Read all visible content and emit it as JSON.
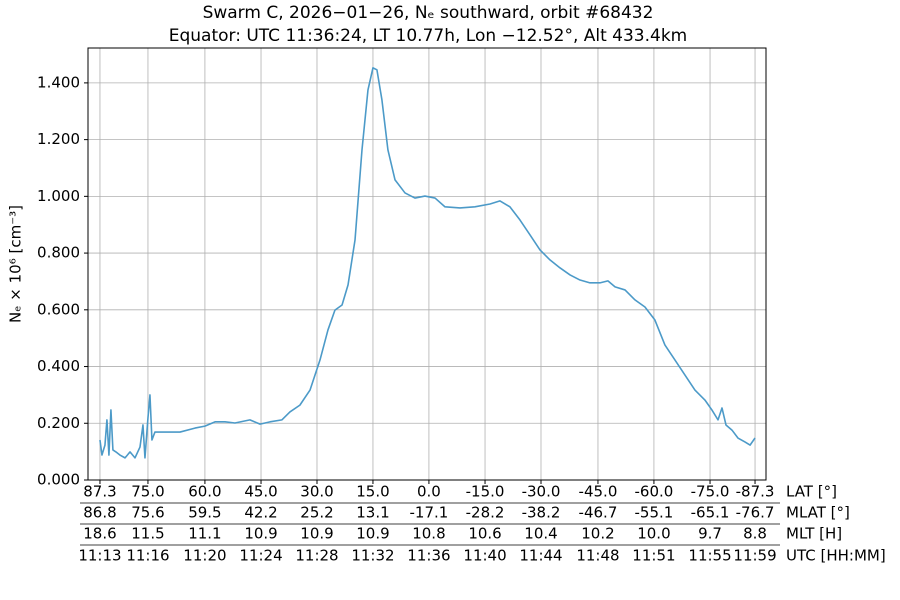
{
  "chart_data": {
    "type": "line",
    "title": "Swarm C, 2026−01−26, Nₑ southward, orbit #68432",
    "subtitle": "Equator: UTC 11:36:24, LT 10.77h, Lon −12.52°, Alt 433.4km",
    "y_label": "Nₑ × 10⁶ [cm⁻³]",
    "x_label": "UTC [HH:MM]",
    "color": "#4c9ac8",
    "grid": true,
    "xlim": [
      672.16,
      719.77
    ],
    "ylim": [
      0,
      1.523
    ],
    "yticks": [
      {
        "value": 0,
        "label": "0.000"
      },
      {
        "value": 0.2,
        "label": "0.200"
      },
      {
        "value": 0.4,
        "label": "0.400"
      },
      {
        "value": 0.6,
        "label": "0.600"
      },
      {
        "value": 0.8,
        "label": "0.800"
      },
      {
        "value": 1.0,
        "label": "1.000"
      },
      {
        "value": 1.2,
        "label": "1.200"
      },
      {
        "value": 1.4,
        "label": "1.400"
      }
    ],
    "xticks": [
      {
        "value": 673.0,
        "label": "11:13"
      },
      {
        "value": 676.37,
        "label": "11:16"
      },
      {
        "value": 680.37,
        "label": "11:20"
      },
      {
        "value": 684.31,
        "label": "11:24"
      },
      {
        "value": 688.24,
        "label": "11:28"
      },
      {
        "value": 692.17,
        "label": "11:32"
      },
      {
        "value": 696.1,
        "label": "11:36"
      },
      {
        "value": 700.04,
        "label": "11:40"
      },
      {
        "value": 703.97,
        "label": "11:44"
      },
      {
        "value": 707.97,
        "label": "11:48"
      },
      {
        "value": 711.9,
        "label": "11:51"
      },
      {
        "value": 715.84,
        "label": "11:55"
      },
      {
        "value": 719.0,
        "label": "11:59"
      }
    ],
    "extra_rows": [
      {
        "name": "LAT [°]",
        "labels": [
          "87.3",
          "75.0",
          "60.0",
          "45.0",
          "30.0",
          "15.0",
          "0.0",
          "-15.0",
          "-30.0",
          "-45.0",
          "-60.0",
          "-75.0",
          "-87.3"
        ]
      },
      {
        "name": "MLAT [°]",
        "labels": [
          "86.8",
          "75.6",
          "59.5",
          "42.2",
          "25.2",
          "13.1",
          "-17.1",
          "-28.2",
          "-38.2",
          "-46.7",
          "-55.1",
          "-65.1",
          "-76.7"
        ]
      },
      {
        "name": "MLT [H]",
        "labels": [
          "18.6",
          "11.5",
          "11.1",
          "10.9",
          "10.9",
          "10.9",
          "10.8",
          "10.6",
          "10.4",
          "10.2",
          "10.0",
          "9.7",
          "8.8"
        ]
      }
    ],
    "x": [
      673.0,
      673.14,
      673.35,
      673.49,
      673.63,
      673.77,
      673.91,
      674.12,
      674.4,
      674.76,
      675.11,
      675.46,
      675.81,
      676.02,
      676.16,
      676.37,
      676.51,
      676.65,
      676.86,
      677.21,
      677.92,
      678.62,
      679.67,
      680.37,
      681.08,
      681.78,
      682.48,
      683.53,
      684.24,
      684.94,
      685.78,
      686.34,
      687.04,
      687.75,
      688.45,
      689.01,
      689.5,
      690.0,
      690.42,
      690.91,
      691.4,
      691.82,
      692.17,
      692.45,
      692.8,
      693.22,
      693.72,
      694.42,
      695.12,
      695.82,
      696.53,
      697.23,
      698.28,
      699.33,
      700.39,
      701.09,
      701.79,
      702.49,
      703.2,
      703.9,
      704.6,
      705.3,
      706.01,
      706.71,
      707.41,
      708.11,
      708.67,
      709.17,
      709.87,
      710.57,
      711.27,
      711.97,
      712.67,
      713.38,
      714.08,
      714.78,
      715.48,
      715.97,
      716.4,
      716.68,
      716.96,
      717.38,
      717.8,
      718.29,
      718.65,
      719.0
    ],
    "values": [
      0.141,
      0.088,
      0.123,
      0.212,
      0.088,
      0.247,
      0.106,
      0.099,
      0.088,
      0.078,
      0.099,
      0.078,
      0.116,
      0.194,
      0.078,
      0.219,
      0.3,
      0.141,
      0.169,
      0.169,
      0.169,
      0.169,
      0.183,
      0.19,
      0.205,
      0.205,
      0.201,
      0.212,
      0.197,
      0.205,
      0.212,
      0.24,
      0.264,
      0.317,
      0.423,
      0.529,
      0.599,
      0.617,
      0.688,
      0.846,
      1.164,
      1.375,
      1.453,
      1.446,
      1.34,
      1.164,
      1.058,
      1.012,
      0.994,
      1.001,
      0.994,
      0.963,
      0.959,
      0.963,
      0.973,
      0.984,
      0.963,
      0.917,
      0.864,
      0.811,
      0.776,
      0.748,
      0.723,
      0.705,
      0.695,
      0.695,
      0.702,
      0.681,
      0.67,
      0.635,
      0.61,
      0.564,
      0.476,
      0.423,
      0.37,
      0.317,
      0.282,
      0.247,
      0.212,
      0.254,
      0.194,
      0.176,
      0.148,
      0.134,
      0.123,
      0.148
    ]
  }
}
